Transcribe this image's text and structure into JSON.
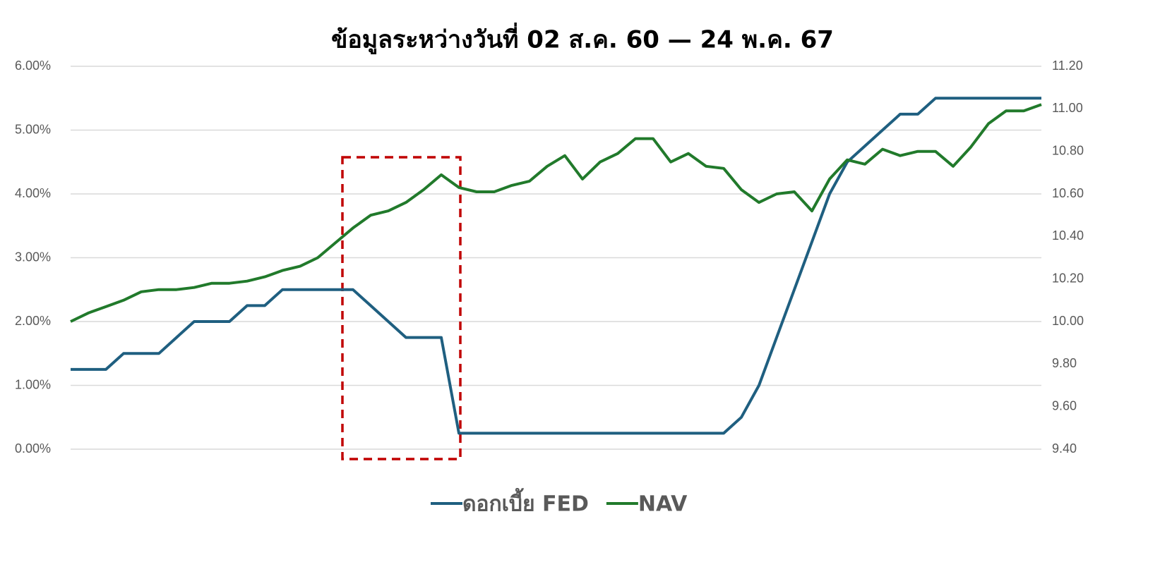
{
  "chart_data": {
    "type": "line",
    "title": "ข้อมูลระหว่างวันที่ 02 ส.ค. 60 — 24 พ.ค. 67",
    "categories": [
      null,
      null,
      null,
      null,
      null,
      null,
      null,
      null,
      null,
      null,
      null,
      null,
      null,
      null,
      null,
      null,
      null,
      null,
      null,
      null,
      null,
      null,
      null,
      null,
      null,
      null,
      null,
      null,
      null,
      null,
      null,
      null,
      null,
      null,
      null,
      null,
      null,
      null,
      null,
      null,
      null,
      null,
      null,
      null,
      null,
      null,
      null,
      null,
      null,
      null,
      null,
      null,
      null,
      null,
      null,
      null
    ],
    "series": [
      {
        "name": "ดอกเบี้ย FED",
        "color": "#1f5f80",
        "values": [
          1.25,
          1.25,
          1.25,
          1.5,
          1.5,
          1.5,
          1.75,
          2.0,
          2.0,
          2.0,
          2.25,
          2.25,
          2.5,
          2.5,
          2.5,
          2.5,
          2.5,
          2.25,
          2.0,
          1.75,
          1.75,
          1.75,
          0.25,
          0.25,
          0.25,
          0.25,
          0.25,
          0.25,
          0.25,
          0.25,
          0.25,
          0.25,
          0.25,
          0.25,
          0.25,
          0.25,
          0.25,
          0.25,
          0.5,
          1.0,
          1.75,
          2.5,
          3.25,
          4.0,
          4.5,
          4.75,
          5.0,
          5.25,
          5.25,
          5.5,
          5.5,
          5.5,
          5.5,
          5.5,
          5.5,
          5.5
        ]
      },
      {
        "name": "NAV",
        "color": "#217a2b",
        "axis": "y2",
        "values": [
          10.0,
          10.04,
          10.07,
          10.1,
          10.14,
          10.15,
          10.15,
          10.16,
          10.18,
          10.18,
          10.19,
          10.21,
          10.24,
          10.26,
          10.3,
          10.37,
          10.44,
          10.5,
          10.52,
          10.56,
          10.62,
          10.69,
          10.63,
          10.61,
          10.61,
          10.64,
          10.66,
          10.73,
          10.78,
          10.67,
          10.75,
          10.79,
          10.86,
          10.86,
          10.75,
          10.79,
          10.73,
          10.72,
          10.62,
          10.56,
          10.6,
          10.61,
          10.52,
          10.67,
          10.76,
          10.74,
          10.81,
          10.78,
          10.8,
          10.8,
          10.73,
          10.82,
          10.93,
          10.99,
          10.99,
          11.02
        ]
      }
    ],
    "ylim": [
      0,
      6
    ],
    "yticks": [
      {
        "value": 0,
        "label": "0.00%"
      },
      {
        "value": 1,
        "label": "1.00%"
      },
      {
        "value": 2,
        "label": "2.00%"
      },
      {
        "value": 3,
        "label": "3.00%"
      },
      {
        "value": 4,
        "label": "4.00%"
      },
      {
        "value": 5,
        "label": "5.00%"
      },
      {
        "value": 6,
        "label": "6.00%"
      }
    ],
    "y2lim": [
      9.4,
      11.2
    ],
    "y2ticks": [
      {
        "value": 9.4,
        "label": "9.40"
      },
      {
        "value": 9.6,
        "label": "9.60"
      },
      {
        "value": 9.8,
        "label": "9.80"
      },
      {
        "value": 10.0,
        "label": "10.00"
      },
      {
        "value": 10.2,
        "label": "10.20"
      },
      {
        "value": 10.4,
        "label": "10.40"
      },
      {
        "value": 10.6,
        "label": "10.60"
      },
      {
        "value": 10.8,
        "label": "10.80"
      },
      {
        "value": 11.0,
        "label": "11.00"
      },
      {
        "value": 11.2,
        "label": "11.20"
      }
    ],
    "grid": true,
    "legend": "bottom"
  }
}
